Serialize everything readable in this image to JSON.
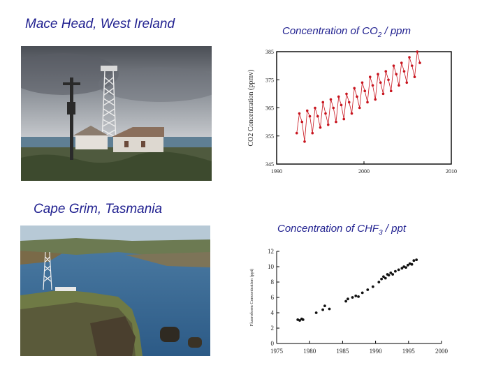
{
  "left": {
    "caption_top": "Mace Head, West Ireland",
    "caption_bottom": "Cape Grim, Tasmania"
  },
  "chart_titles": {
    "co2_prefix": "Concentration of CO",
    "co2_sub": "2",
    "co2_suffix": " / ppm",
    "chf3_prefix": "Concentration of CHF",
    "chf3_sub": "3",
    "chf3_suffix": " / ppt"
  },
  "colors": {
    "caption_text": "#1f1f8f",
    "co2_marker": "#c8141e",
    "chf3_marker": "#111111"
  },
  "chart_data": [
    {
      "type": "scatter",
      "ylabel": "CO2 Concentration (ppmv)",
      "xlim": [
        1990,
        2010
      ],
      "ylim": [
        345,
        385
      ],
      "xticks": [
        "1990",
        "2000",
        "2010"
      ],
      "yticks": [
        "345",
        "355",
        "365",
        "375",
        "385"
      ],
      "grid": false,
      "series": [
        {
          "x": [
            1992.3,
            1992.6,
            1992.9,
            1993.2,
            1993.5,
            1993.8,
            1994.1,
            1994.4,
            1994.7,
            1995.0,
            1995.3,
            1995.6,
            1995.9,
            1996.2,
            1996.5,
            1996.8,
            1997.1,
            1997.4,
            1997.7,
            1998.0,
            1998.3,
            1998.6,
            1998.9,
            1999.2,
            1999.5,
            1999.8,
            2000.1,
            2000.4,
            2000.7,
            2001.0,
            2001.3,
            2001.6,
            2001.9,
            2002.2,
            2002.5,
            2002.8,
            2003.1,
            2003.4,
            2003.7,
            2004.0,
            2004.3,
            2004.6,
            2004.9,
            2005.2,
            2005.5,
            2005.8,
            2006.1,
            2006.4
          ],
          "y": [
            356,
            363,
            360,
            353,
            364,
            362,
            356,
            365,
            362,
            358,
            367,
            363,
            359,
            368,
            365,
            360,
            369,
            366,
            361,
            370,
            367,
            363,
            372,
            369,
            365,
            374,
            371,
            367,
            376,
            373,
            368,
            377,
            374,
            370,
            378,
            375,
            371,
            380,
            377,
            373,
            381,
            378,
            374,
            383,
            380,
            376,
            385,
            381
          ]
        }
      ]
    },
    {
      "type": "scatter",
      "ylabel": "Fluoroform Concentration (ppt)",
      "xlim": [
        1975,
        2000
      ],
      "ylim": [
        0,
        12
      ],
      "xticks": [
        "1975",
        "1980",
        "1985",
        "1990",
        "1995",
        "2000"
      ],
      "yticks": [
        "0",
        "2",
        "4",
        "6",
        "8",
        "10",
        "12"
      ],
      "grid": false,
      "series": [
        {
          "x": [
            1978.2,
            1978.5,
            1978.8,
            1979.0,
            1981.0,
            1982.0,
            1982.3,
            1983.0,
            1985.5,
            1985.8,
            1986.5,
            1987.0,
            1987.4,
            1988.0,
            1988.8,
            1989.6,
            1990.5,
            1990.9,
            1991.2,
            1991.5,
            1991.8,
            1992.0,
            1992.3,
            1992.6,
            1993.0,
            1993.5,
            1994.0,
            1994.3,
            1994.6,
            1994.9,
            1995.2,
            1995.5,
            1995.8,
            1996.2
          ],
          "y": [
            3.1,
            3.0,
            3.2,
            3.1,
            4.0,
            4.4,
            4.9,
            4.5,
            5.5,
            5.8,
            6.0,
            6.2,
            6.1,
            6.6,
            7.0,
            7.4,
            8.0,
            8.4,
            8.7,
            8.5,
            9.0,
            8.9,
            9.2,
            9.0,
            9.4,
            9.6,
            9.8,
            10.0,
            9.9,
            10.2,
            10.4,
            10.3,
            10.8,
            10.9
          ]
        }
      ]
    }
  ]
}
